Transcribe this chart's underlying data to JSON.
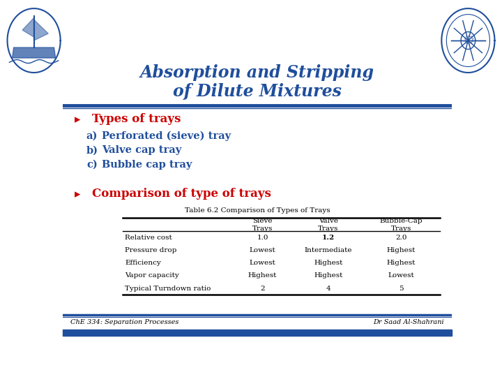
{
  "title_line1": "Absorption and Stripping",
  "title_line2": "of Dilute Mixtures",
  "title_color": "#1F4E9C",
  "background_color": "#FFFFFF",
  "blue_color": "#1F4E9C",
  "red_color": "#CC0000",
  "bullet1_text": "Types of trays",
  "bullet1_color": "#CC0000",
  "sub_items": [
    {
      "label": "a)",
      "text": "Perforated (sieve) tray"
    },
    {
      "label": "b)",
      "text": "Valve cap tray"
    },
    {
      "label": "c)",
      "text": "Bubble cap tray"
    }
  ],
  "sub_item_color": "#1F4E9C",
  "bullet2_text": "Comparison of type of trays",
  "bullet2_color": "#CC0000",
  "table_title": "Table 6.2 Comparison of Types of Trays",
  "table_col_headers": [
    "",
    "Sieve\nTrays",
    "Valve\nTrays",
    "Bubble-Cap\nTrays"
  ],
  "table_rows": [
    [
      "Relative cost",
      "1.0",
      "1.2",
      "2.0"
    ],
    [
      "Pressure drop",
      "Lowest",
      "Intermediate",
      "Highest"
    ],
    [
      "Efficiency",
      "Lowest",
      "Highest",
      "Highest"
    ],
    [
      "Vapor capacity",
      "Highest",
      "Highest",
      "Lowest"
    ],
    [
      "Typical Turndown ratio",
      "2",
      "4",
      "5"
    ]
  ],
  "footer_left": "ChE 334: Separation Processes",
  "footer_right": "Dr Saad Al-Shahrani",
  "footer_text_color": "#000000"
}
